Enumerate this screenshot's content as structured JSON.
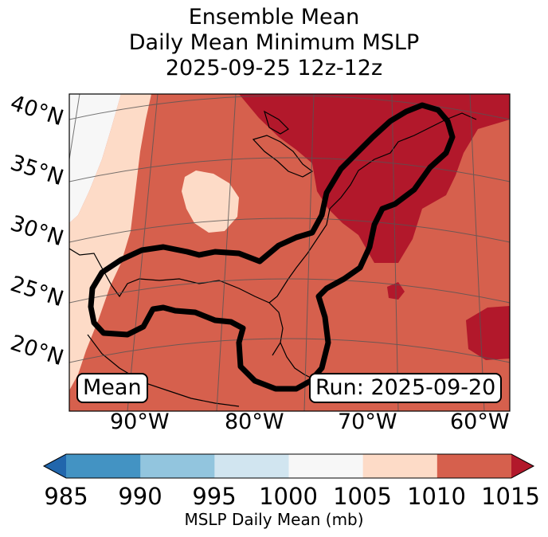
{
  "title": {
    "line1": "Ensemble Mean",
    "line2": "Daily Mean Minimum MSLP",
    "line3": "2025-09-25 12z-12z"
  },
  "map": {
    "latitude_labels": [
      "40°N",
      "35°N",
      "30°N",
      "25°N",
      "20°N"
    ],
    "longitude_labels": [
      "90°W",
      "80°W",
      "70°W",
      "60°W"
    ],
    "mean_box": "Mean",
    "run_box": "Run: 2025-09-20"
  },
  "colorbar": {
    "label": "MSLP Daily Mean (mb)",
    "ticks": [
      "985",
      "990",
      "995",
      "1000",
      "1005",
      "1010",
      "1015"
    ],
    "colors": [
      "#4393c3",
      "#92c5de",
      "#d1e5f0",
      "#f7f7f7",
      "#fddbc7",
      "#d6604d"
    ],
    "under_color": "#2166ac",
    "over_color": "#b2182b"
  }
}
